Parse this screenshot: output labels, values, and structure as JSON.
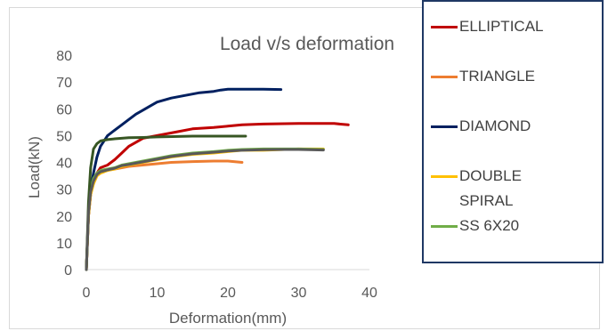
{
  "chart_data": {
    "type": "line",
    "title": "Load v/s deformation",
    "xlabel": "Deformation(mm)",
    "ylabel": "Load(kN)",
    "xlim": [
      0,
      40
    ],
    "ylim": [
      0,
      80
    ],
    "x_ticks": [
      "0",
      "10",
      "20",
      "30",
      "40"
    ],
    "y_ticks": [
      "0",
      "10",
      "20",
      "30",
      "40",
      "50",
      "60",
      "70",
      "80"
    ],
    "grid": false,
    "legend_placement": "right",
    "series": [
      {
        "name": "ELLIPTICAL",
        "color": "#c00000",
        "x": [
          0,
          0.3,
          0.6,
          1,
          1.5,
          2,
          2.5,
          3,
          4,
          5,
          6,
          7,
          8,
          10,
          12,
          15,
          18,
          20,
          22,
          25,
          30,
          35,
          37
        ],
        "y": [
          0,
          20,
          28,
          33,
          36,
          38,
          38.5,
          39,
          41,
          43.5,
          46,
          47.5,
          49,
          50,
          51,
          52.5,
          53,
          53.5,
          54,
          54.3,
          54.5,
          54.5,
          54
        ]
      },
      {
        "name": "TRIANGLE",
        "color": "#ed7d31",
        "x": [
          0,
          0.3,
          0.6,
          1,
          1.5,
          2,
          3,
          4,
          5,
          6,
          8,
          10,
          12,
          15,
          18,
          20,
          22
        ],
        "y": [
          0,
          20,
          28,
          32,
          35,
          36,
          37,
          37.5,
          38,
          38.5,
          39,
          39.5,
          40,
          40.3,
          40.5,
          40.5,
          40
        ]
      },
      {
        "name": "DIAMOND",
        "color": "#002060",
        "x": [
          0,
          0.3,
          0.6,
          1,
          1.5,
          2,
          3,
          4,
          5,
          6,
          7,
          8,
          9,
          10,
          12,
          14,
          16,
          18,
          19,
          20,
          22,
          25,
          27.5
        ],
        "y": [
          0,
          20,
          30,
          36,
          42,
          46,
          50,
          52,
          54,
          56,
          58,
          59.5,
          61,
          62.5,
          64,
          65,
          66,
          66.5,
          67,
          67.3,
          67.3,
          67.3,
          67.2
        ]
      },
      {
        "name": "DOUBLE SPIRAL",
        "label": "DOUBLE\nSPIRAL",
        "color": "#ffc000",
        "x": [
          0,
          0.3,
          0.6,
          1,
          1.5,
          2,
          3,
          4,
          5,
          6,
          8,
          10,
          12,
          15,
          18,
          20,
          22,
          25,
          28,
          30,
          33.5
        ],
        "y": [
          0,
          20,
          28,
          32,
          35,
          36,
          37,
          37.5,
          38.5,
          39,
          40,
          41,
          42,
          43,
          43.5,
          44,
          44.5,
          44.5,
          44.8,
          45,
          45
        ]
      },
      {
        "name": "SS 6X20",
        "color": "#70ad47",
        "x": [
          0,
          0.3,
          0.6,
          1,
          1.5,
          2,
          3,
          4,
          5,
          6,
          8,
          10,
          12,
          15,
          18,
          20,
          22,
          25,
          28,
          30,
          33.5
        ],
        "y": [
          0,
          22,
          30,
          34,
          36,
          37,
          37.5,
          38,
          39,
          39.5,
          40.5,
          41.5,
          42.5,
          43.5,
          44,
          44.5,
          44.8,
          45,
          45,
          45,
          44.8
        ]
      }
    ],
    "extra_series": [
      {
        "color": "#375623",
        "x": [
          0,
          0.3,
          0.6,
          1,
          1.5,
          2,
          3,
          4,
          5,
          6,
          8,
          10,
          15,
          20,
          22.5
        ],
        "y": [
          0,
          25,
          38,
          45,
          47,
          48,
          48.5,
          48.8,
          49,
          49.2,
          49.3,
          49.5,
          49.8,
          49.8,
          49.8
        ]
      },
      {
        "color": "#595959",
        "x": [
          0,
          0.3,
          0.6,
          1,
          1.5,
          2,
          3,
          4,
          5,
          6,
          8,
          10,
          12,
          15,
          18,
          20,
          22,
          25,
          28,
          30,
          33.5
        ],
        "y": [
          0,
          21,
          29,
          33,
          35.5,
          36.5,
          37.2,
          37.8,
          38.8,
          39.2,
          40.2,
          41.2,
          42.2,
          43.2,
          43.8,
          44.2,
          44.5,
          44.7,
          44.8,
          44.8,
          44.6
        ]
      }
    ]
  }
}
